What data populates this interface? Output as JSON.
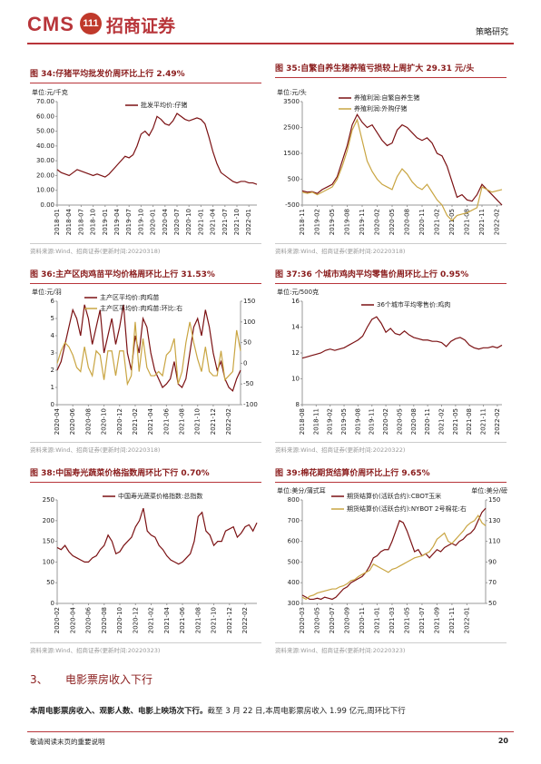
{
  "header": {
    "brand": "CMS",
    "logo": "111",
    "company": "招商证券",
    "department": "策略研究"
  },
  "chart_data": [
    {
      "type": "line",
      "title": "图 34:仔猪平均批发价周环比上行 2.49%",
      "unit": "单位:元/千克",
      "source": "资料来源:Wind、招商证券(更新时间:20220318)",
      "categories": [
        "2018-01",
        null,
        null,
        "2018-04",
        null,
        null,
        "2018-07",
        null,
        null,
        "2018-10",
        null,
        null,
        "2019-01",
        null,
        null,
        "2019-04",
        null,
        null,
        "2019-07",
        null,
        null,
        "2019-10",
        null,
        null,
        "2020-01",
        null,
        null,
        "2020-04",
        null,
        null,
        "2020-07",
        null,
        null,
        "2020-10",
        null,
        null,
        "2021-01",
        null,
        null,
        "2021-04",
        null,
        null,
        "2021-07",
        null,
        null,
        "2021-10",
        null,
        null,
        "2022-01",
        null,
        null
      ],
      "series": [
        {
          "name": "批发平均价:仔猪",
          "color": "#7b1113",
          "values": [
            24,
            22,
            21,
            20,
            22,
            24,
            23,
            22,
            21,
            20,
            21,
            20,
            19,
            21,
            24,
            27,
            30,
            33,
            32,
            34,
            40,
            48,
            50,
            47,
            52,
            60,
            58,
            55,
            54,
            57,
            62,
            60,
            58,
            57,
            58,
            59,
            58,
            55,
            46,
            36,
            28,
            22,
            20,
            18,
            16,
            15,
            16,
            16,
            15,
            15,
            14
          ]
        }
      ],
      "ylim": [
        0,
        70
      ],
      "yticks": [
        {
          "value": 0,
          "label": "0.00"
        },
        {
          "value": 10,
          "label": "10.00"
        },
        {
          "value": 20,
          "label": "20.00"
        },
        {
          "value": 30,
          "label": "30.00"
        },
        {
          "value": 40,
          "label": "40.00"
        },
        {
          "value": 50,
          "label": "50.00"
        },
        {
          "value": 60,
          "label": "60.00"
        },
        {
          "value": 70,
          "label": "70.00"
        }
      ]
    },
    {
      "type": "line",
      "title": "图 35:自繁自养生猪养殖亏损较上周扩大 29.31 元/头",
      "unit": "单位:元/头",
      "source": "资料来源:Wind、招商证券(更新时间:20220318)",
      "categories": [
        "2018-11",
        null,
        null,
        "2019-02",
        null,
        null,
        "2019-05",
        null,
        null,
        "2019-08",
        null,
        null,
        "2019-11",
        null,
        null,
        "2020-02",
        null,
        null,
        "2020-05",
        null,
        null,
        "2020-08",
        null,
        null,
        "2020-11",
        null,
        null,
        "2021-02",
        null,
        null,
        "2021-05",
        null,
        null,
        "2021-08",
        null,
        null,
        "2021-11",
        null,
        null,
        "2022-02",
        null
      ],
      "series": [
        {
          "name": "养殖利润:自繁自养生猪",
          "color": "#7b1113",
          "values": [
            50,
            0,
            20,
            -50,
            100,
            200,
            300,
            600,
            1200,
            1800,
            2600,
            3000,
            2700,
            2500,
            2600,
            2300,
            2000,
            1800,
            1900,
            2400,
            2600,
            2500,
            2300,
            2100,
            2000,
            2100,
            1900,
            1500,
            1400,
            1000,
            400,
            -200,
            -100,
            -300,
            -350,
            -100,
            300,
            100,
            -100,
            -300,
            -500
          ]
        },
        {
          "name": "养殖利润:外购仔猪",
          "color": "#c9a542",
          "values": [
            0,
            -50,
            0,
            -100,
            0,
            100,
            200,
            500,
            1000,
            1600,
            2400,
            2800,
            2000,
            1200,
            800,
            500,
            300,
            200,
            100,
            600,
            900,
            700,
            400,
            200,
            100,
            300,
            0,
            -300,
            -500,
            -900,
            -1100,
            -900,
            -850,
            -800,
            -700,
            -600,
            200,
            100,
            0,
            50,
            100
          ]
        }
      ],
      "ylim": [
        -500,
        3500
      ],
      "yticks": [
        -500,
        500,
        1500,
        2500,
        3500
      ]
    },
    {
      "type": "line",
      "title": "图 36:主产区肉鸡苗平均价格周环比上行 31.53%",
      "unit": "单位:元/羽",
      "source": "资料来源:Wind、招商证券(更新时间:20220318)",
      "categories": [
        "2020-04",
        null,
        null,
        null,
        "2020-06",
        null,
        null,
        null,
        "2020-08",
        null,
        null,
        null,
        "2020-10",
        null,
        null,
        null,
        "2020-12",
        null,
        null,
        null,
        "2021-02",
        null,
        null,
        null,
        "2021-04",
        null,
        null,
        null,
        "2021-06",
        null,
        null,
        null,
        "2021-08",
        null,
        null,
        null,
        "2021-10",
        null,
        null,
        null,
        "2021-12",
        null,
        null,
        null,
        "2022-02",
        null,
        null,
        null
      ],
      "series": [
        {
          "name": "主产区平均价:肉鸡苗",
          "color": "#7b1113",
          "values": [
            2.0,
            2.5,
            3.5,
            4.5,
            5.5,
            5.0,
            4.0,
            5.8,
            5.0,
            3.5,
            4.5,
            5.5,
            3.0,
            4.0,
            5.0,
            3.5,
            4.5,
            5.8,
            3.0,
            2.0,
            4.0,
            3.0,
            5.0,
            4.5,
            3.0,
            2.0,
            1.5,
            1.0,
            1.2,
            1.5,
            2.5,
            1.2,
            1.0,
            1.5,
            3.0,
            4.5,
            5.0,
            4.0,
            5.5,
            4.5,
            3.0,
            2.0,
            2.5,
            1.5,
            1.0,
            0.8,
            1.5,
            2.0
          ]
        },
        {
          "name": "主产区平均价:肉鸡苗:环比:右",
          "color": "#c9a542",
          "axis": "y2",
          "values": [
            0,
            30,
            50,
            40,
            20,
            -10,
            -20,
            40,
            -10,
            -30,
            30,
            20,
            -40,
            30,
            30,
            -30,
            30,
            30,
            -50,
            -30,
            100,
            -20,
            60,
            -10,
            -30,
            -30,
            -20,
            -30,
            20,
            30,
            60,
            -50,
            -20,
            50,
            100,
            50,
            10,
            -20,
            40,
            -20,
            -30,
            -30,
            30,
            -40,
            -30,
            -20,
            80,
            30
          ]
        }
      ],
      "ylim": [
        0,
        6
      ],
      "yticks": [
        0,
        1,
        2,
        3,
        4,
        5,
        6
      ],
      "y2lim": [
        -100,
        150
      ],
      "y2ticks": [
        -100,
        -50,
        0,
        50,
        100,
        150
      ]
    },
    {
      "type": "line",
      "title": "图 37:36 个城市鸡肉平均零售价周环比上行 0.95%",
      "unit": "单位:元/500克",
      "source": "资料来源:Wind、招商证券(更新时间:20220322)",
      "categories": [
        "2018-08",
        null,
        null,
        "2018-11",
        null,
        null,
        "2019-02",
        null,
        null,
        "2019-05",
        null,
        null,
        "2019-08",
        null,
        null,
        "2019-11",
        null,
        null,
        "2020-02",
        null,
        null,
        "2020-05",
        null,
        null,
        "2020-08",
        null,
        null,
        "2020-11",
        null,
        null,
        "2021-02",
        null,
        null,
        "2021-05",
        null,
        null,
        "2021-08",
        null,
        null,
        "2021-11",
        null,
        null,
        "2022-02",
        null
      ],
      "series": [
        {
          "name": "36个城市平均零售价:鸡肉",
          "color": "#7b1113",
          "values": [
            11.6,
            11.7,
            11.8,
            11.9,
            12.0,
            12.2,
            12.3,
            12.2,
            12.3,
            12.4,
            12.6,
            12.8,
            13.0,
            13.3,
            14.0,
            14.6,
            14.8,
            14.3,
            13.6,
            13.9,
            13.5,
            13.4,
            13.7,
            13.4,
            13.2,
            13.1,
            13.0,
            13.0,
            12.9,
            12.9,
            12.8,
            12.5,
            12.9,
            13.1,
            13.2,
            13.0,
            12.6,
            12.4,
            12.3,
            12.4,
            12.4,
            12.5,
            12.4,
            12.6
          ]
        }
      ],
      "ylim": [
        8,
        16
      ],
      "yticks": [
        8,
        10,
        12,
        14,
        16
      ]
    },
    {
      "type": "line",
      "title": "图 38:中国寿光蔬菜价格指数周环比下行 0.70%",
      "source": "资料来源:Wind、招商证券(更新时间:20220323)",
      "categories": [
        "2020-02",
        null,
        null,
        null,
        "2020-04",
        null,
        null,
        null,
        "2020-06",
        null,
        null,
        null,
        "2020-08",
        null,
        null,
        null,
        "2020-10",
        null,
        null,
        null,
        "2020-12",
        null,
        null,
        null,
        "2021-02",
        null,
        null,
        null,
        "2021-04",
        null,
        null,
        null,
        "2021-06",
        null,
        null,
        null,
        "2021-08",
        null,
        null,
        null,
        "2021-10",
        null,
        null,
        null,
        "2021-12",
        null,
        null,
        null,
        "2022-02",
        null,
        null,
        null
      ],
      "series": [
        {
          "name": "中国寿光蔬菜价格指数:总指数",
          "color": "#7b1113",
          "values": [
            135,
            130,
            140,
            125,
            115,
            110,
            105,
            100,
            100,
            110,
            115,
            130,
            140,
            165,
            150,
            120,
            125,
            140,
            150,
            160,
            185,
            200,
            230,
            175,
            165,
            160,
            140,
            130,
            115,
            105,
            100,
            95,
            100,
            110,
            120,
            150,
            210,
            220,
            175,
            165,
            140,
            150,
            150,
            175,
            180,
            185,
            160,
            170,
            185,
            190,
            175,
            195
          ]
        }
      ],
      "ylim": [
        0,
        250
      ],
      "yticks": [
        0,
        50,
        100,
        150,
        200,
        250
      ]
    },
    {
      "type": "line",
      "title": "图 39:棉花期货结算价周环比上行 9.65%",
      "unit": "单位:美分/蒲式耳",
      "y2unit": "单位:美分/磅",
      "source": "资料来源:Wind、招商证券(更新时间:20220323)",
      "categories": [
        "2020-03",
        null,
        null,
        null,
        "2020-05",
        null,
        null,
        null,
        "2020-07",
        null,
        null,
        null,
        "2020-09",
        null,
        null,
        null,
        "2020-11",
        null,
        null,
        null,
        "2021-01",
        null,
        null,
        null,
        "2021-03",
        null,
        null,
        null,
        "2021-05",
        null,
        null,
        null,
        "2021-07",
        null,
        null,
        null,
        "2021-09",
        null,
        null,
        null,
        "2021-11",
        null,
        null,
        null,
        "2022-01",
        null,
        null,
        null,
        null,
        null
      ],
      "series": [
        {
          "name": "期货结算价(活跃合约):CBOT玉米",
          "color": "#7b1113",
          "values": [
            340,
            330,
            320,
            320,
            325,
            320,
            330,
            325,
            320,
            330,
            350,
            370,
            380,
            400,
            410,
            420,
            430,
            450,
            480,
            520,
            530,
            550,
            560,
            560,
            600,
            650,
            700,
            690,
            650,
            600,
            550,
            560,
            530,
            540,
            520,
            540,
            560,
            550,
            570,
            580,
            590,
            580,
            600,
            610,
            630,
            640,
            660,
            700,
            740,
            760
          ]
        },
        {
          "name": "期货结算价(活跃合约):NYBOT 2号棉花:右",
          "color": "#c9a542",
          "axis": "y2",
          "values": [
            56,
            54,
            57,
            58,
            60,
            61,
            62,
            63,
            64,
            64,
            66,
            67,
            69,
            72,
            73,
            76,
            78,
            80,
            82,
            88,
            86,
            84,
            82,
            80,
            83,
            84,
            86,
            88,
            90,
            92,
            94,
            95,
            96,
            98,
            100,
            105,
            112,
            115,
            118,
            110,
            108,
            112,
            116,
            120,
            125,
            128,
            130,
            135,
            128,
            125
          ]
        }
      ],
      "ylim": [
        300,
        800
      ],
      "yticks": [
        300,
        400,
        500,
        600,
        700,
        800
      ],
      "y2lim": [
        50,
        150
      ],
      "y2ticks": [
        50,
        70,
        90,
        110,
        130,
        150
      ]
    }
  ],
  "section": {
    "number": "3、",
    "title": "电影票房收入下行"
  },
  "paragraph": {
    "bold": "本周电影票房收入、观影人数、电影上映场次下行。",
    "text": "截至 3 月 22 日,本周电影票房收入 1.99 亿元,周环比下行"
  },
  "footer": {
    "note": "敬请阅读末页的重要说明",
    "page": "20"
  }
}
